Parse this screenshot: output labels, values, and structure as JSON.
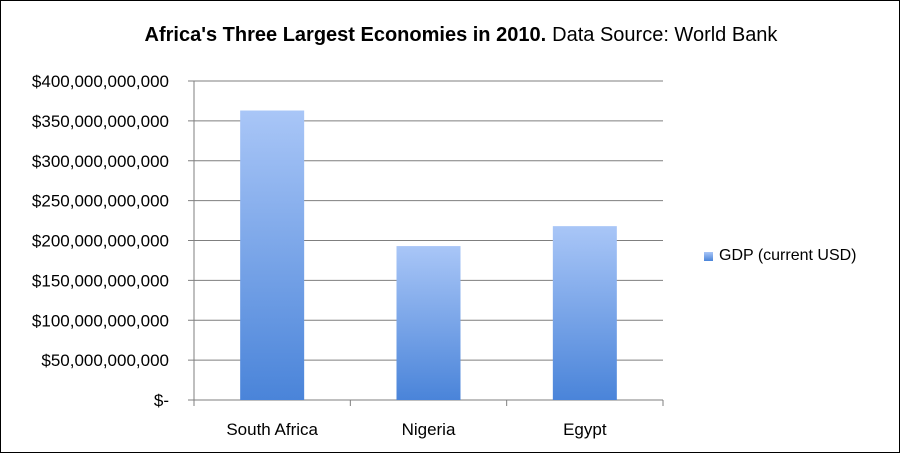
{
  "chart_data": {
    "type": "bar",
    "title_bold": "Africa's Three Largest Economies in 2010.",
    "title_rest": "Data Source:  World Bank",
    "categories": [
      "South Africa",
      "Nigeria",
      "Egypt"
    ],
    "series": [
      {
        "name": "GDP (current USD)",
        "values": [
          363000000000,
          193000000000,
          218000000000
        ]
      }
    ],
    "ylim": [
      0,
      400000000000
    ],
    "yticks": [
      0,
      50000000000,
      100000000000,
      150000000000,
      200000000000,
      250000000000,
      300000000000,
      350000000000,
      400000000000
    ],
    "ytick_labels": [
      "$-",
      "$50,000,000,000",
      "$100,000,000,000",
      "$150,000,000,000",
      "$200,000,000,000",
      "$250,000,000,000",
      "$300,000,000,000",
      "$350,000,000,000",
      "$400,000,000,000"
    ],
    "grid": true,
    "legend_position": "right",
    "colors": {
      "bar_top": "#a9c6f7",
      "bar_bottom": "#4a84d9",
      "grid": "#7f7f7f"
    }
  }
}
